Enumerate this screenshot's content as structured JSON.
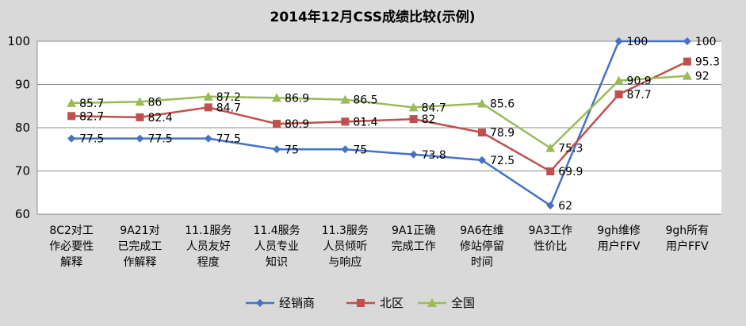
{
  "chart_data": {
    "type": "line",
    "title": "2014年12月CSS成绩比较(示例)",
    "xlabel": "",
    "ylabel": "",
    "ylim": [
      60,
      100
    ],
    "yticks": [
      60,
      70,
      80,
      90,
      100
    ],
    "grid": true,
    "legend_position": "bottom",
    "categories": [
      [
        "8C2对工",
        "作必要性",
        "解释"
      ],
      [
        "9A21对",
        "已完成工",
        "作解释"
      ],
      [
        "11.1服务",
        "人员友好",
        "程度"
      ],
      [
        "11.4服务",
        "人员专业",
        "知识"
      ],
      [
        "11.3服务",
        "人员倾听",
        "与响应"
      ],
      [
        "9A1正确",
        "完成工作"
      ],
      [
        "9A6在维",
        "修站停留",
        "时间"
      ],
      [
        "9A3工作",
        "性价比"
      ],
      [
        "9gh维修",
        "用户FFV"
      ],
      [
        "9gh所有",
        "用户FFV"
      ]
    ],
    "series": [
      {
        "name": "经销商",
        "color": "#4472c4",
        "marker": "diamond",
        "values": [
          77.5,
          77.5,
          77.5,
          75,
          75,
          73.8,
          72.5,
          62,
          100,
          100
        ]
      },
      {
        "name": "北区",
        "color": "#c0504d",
        "marker": "square",
        "values": [
          82.7,
          82.4,
          84.7,
          80.9,
          81.4,
          82,
          78.9,
          69.9,
          87.7,
          95.3
        ]
      },
      {
        "name": "全国",
        "color": "#9bbb59",
        "marker": "triangle",
        "values": [
          85.7,
          86,
          87.2,
          86.9,
          86.5,
          84.7,
          85.6,
          75.3,
          90.9,
          92
        ]
      }
    ]
  }
}
